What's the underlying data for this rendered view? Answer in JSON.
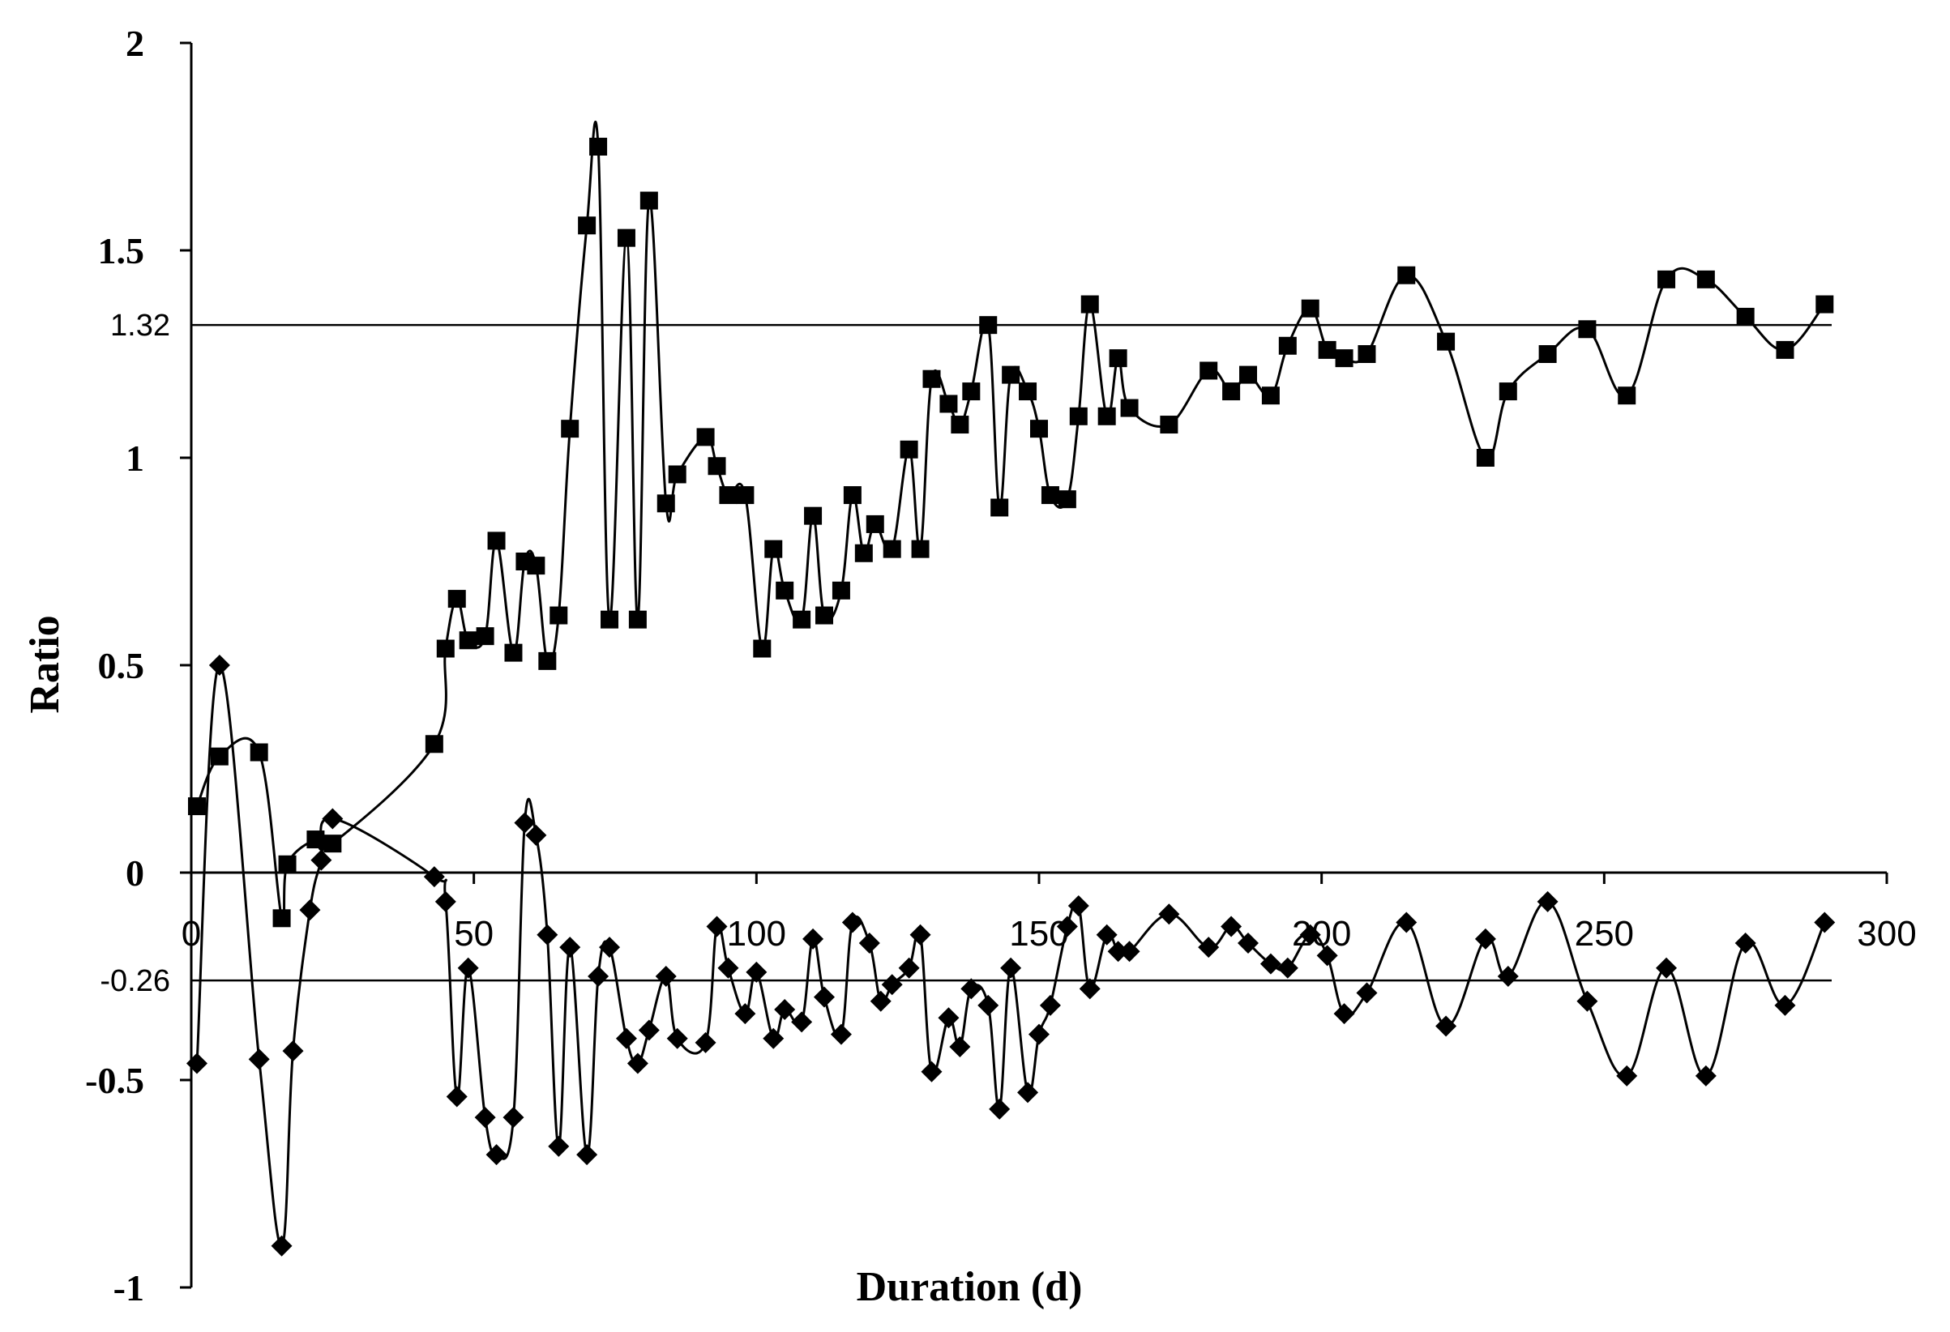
{
  "chart_data": {
    "type": "line",
    "xlabel": "Duration (d)",
    "ylabel": "Ratio",
    "xlim": [
      0,
      300
    ],
    "ylim": [
      -1,
      2
    ],
    "xticks": [
      0,
      50,
      100,
      150,
      200,
      250,
      300
    ],
    "yticks": [
      -1,
      -0.5,
      0,
      0.5,
      1,
      1.5,
      2
    ],
    "ytick_labels": [
      "-1",
      "-0.5",
      "0",
      "0.5",
      "1",
      "1.5",
      "2"
    ],
    "reference_lines": [
      {
        "value": 1.32,
        "label": "1.32"
      },
      {
        "value": -0.26,
        "label": "-0.26"
      }
    ],
    "series": [
      {
        "marker": "square",
        "color": "#000000",
        "points": [
          [
            1,
            0.16
          ],
          [
            5,
            0.28
          ],
          [
            12,
            0.29
          ],
          [
            16,
            -0.11
          ],
          [
            17,
            0.02
          ],
          [
            22,
            0.08
          ],
          [
            25,
            0.07
          ],
          [
            43,
            0.31
          ],
          [
            45,
            0.54
          ],
          [
            47,
            0.66
          ],
          [
            49,
            0.56
          ],
          [
            52,
            0.57
          ],
          [
            54,
            0.8
          ],
          [
            57,
            0.53
          ],
          [
            59,
            0.75
          ],
          [
            61,
            0.74
          ],
          [
            63,
            0.51
          ],
          [
            65,
            0.62
          ],
          [
            67,
            1.07
          ],
          [
            70,
            1.56
          ],
          [
            72,
            1.75
          ],
          [
            74,
            0.61
          ],
          [
            77,
            1.53
          ],
          [
            79,
            0.61
          ],
          [
            81,
            1.62
          ],
          [
            84,
            0.89
          ],
          [
            86,
            0.96
          ],
          [
            91,
            1.05
          ],
          [
            93,
            0.98
          ],
          [
            95,
            0.91
          ],
          [
            98,
            0.91
          ],
          [
            101,
            0.54
          ],
          [
            103,
            0.78
          ],
          [
            105,
            0.68
          ],
          [
            108,
            0.61
          ],
          [
            110,
            0.86
          ],
          [
            112,
            0.62
          ],
          [
            115,
            0.68
          ],
          [
            117,
            0.91
          ],
          [
            119,
            0.77
          ],
          [
            121,
            0.84
          ],
          [
            124,
            0.78
          ],
          [
            127,
            1.02
          ],
          [
            129,
            0.78
          ],
          [
            131,
            1.19
          ],
          [
            134,
            1.13
          ],
          [
            136,
            1.08
          ],
          [
            138,
            1.16
          ],
          [
            141,
            1.32
          ],
          [
            143,
            0.88
          ],
          [
            145,
            1.2
          ],
          [
            148,
            1.16
          ],
          [
            150,
            1.07
          ],
          [
            152,
            0.91
          ],
          [
            155,
            0.9
          ],
          [
            157,
            1.1
          ],
          [
            159,
            1.37
          ],
          [
            162,
            1.1
          ],
          [
            164,
            1.24
          ],
          [
            166,
            1.12
          ],
          [
            173,
            1.08
          ],
          [
            180,
            1.21
          ],
          [
            184,
            1.16
          ],
          [
            187,
            1.2
          ],
          [
            191,
            1.15
          ],
          [
            194,
            1.27
          ],
          [
            198,
            1.36
          ],
          [
            201,
            1.26
          ],
          [
            204,
            1.24
          ],
          [
            208,
            1.25
          ],
          [
            215,
            1.44
          ],
          [
            222,
            1.28
          ],
          [
            229,
            1.0
          ],
          [
            233,
            1.16
          ],
          [
            240,
            1.25
          ],
          [
            247,
            1.31
          ],
          [
            254,
            1.15
          ],
          [
            261,
            1.43
          ],
          [
            268,
            1.43
          ],
          [
            275,
            1.34
          ],
          [
            282,
            1.26
          ],
          [
            289,
            1.37
          ]
        ]
      },
      {
        "marker": "diamond",
        "color": "#000000",
        "points": [
          [
            1,
            -0.46
          ],
          [
            5,
            0.5
          ],
          [
            12,
            -0.45
          ],
          [
            16,
            -0.9
          ],
          [
            18,
            -0.43
          ],
          [
            21,
            -0.09
          ],
          [
            23,
            0.03
          ],
          [
            25,
            0.13
          ],
          [
            43,
            -0.01
          ],
          [
            45,
            -0.07
          ],
          [
            47,
            -0.54
          ],
          [
            49,
            -0.23
          ],
          [
            52,
            -0.59
          ],
          [
            54,
            -0.68
          ],
          [
            57,
            -0.59
          ],
          [
            59,
            0.12
          ],
          [
            61,
            0.09
          ],
          [
            63,
            -0.15
          ],
          [
            65,
            -0.66
          ],
          [
            67,
            -0.18
          ],
          [
            70,
            -0.68
          ],
          [
            72,
            -0.25
          ],
          [
            74,
            -0.18
          ],
          [
            77,
            -0.4
          ],
          [
            79,
            -0.46
          ],
          [
            81,
            -0.38
          ],
          [
            84,
            -0.25
          ],
          [
            86,
            -0.4
          ],
          [
            91,
            -0.41
          ],
          [
            93,
            -0.13
          ],
          [
            95,
            -0.23
          ],
          [
            98,
            -0.34
          ],
          [
            100,
            -0.24
          ],
          [
            103,
            -0.4
          ],
          [
            105,
            -0.33
          ],
          [
            108,
            -0.36
          ],
          [
            110,
            -0.16
          ],
          [
            112,
            -0.3
          ],
          [
            115,
            -0.39
          ],
          [
            117,
            -0.12
          ],
          [
            120,
            -0.17
          ],
          [
            122,
            -0.31
          ],
          [
            124,
            -0.27
          ],
          [
            127,
            -0.23
          ],
          [
            129,
            -0.15
          ],
          [
            131,
            -0.48
          ],
          [
            134,
            -0.35
          ],
          [
            136,
            -0.42
          ],
          [
            138,
            -0.28
          ],
          [
            141,
            -0.32
          ],
          [
            143,
            -0.57
          ],
          [
            145,
            -0.23
          ],
          [
            148,
            -0.53
          ],
          [
            150,
            -0.39
          ],
          [
            152,
            -0.32
          ],
          [
            155,
            -0.13
          ],
          [
            157,
            -0.08
          ],
          [
            159,
            -0.28
          ],
          [
            162,
            -0.15
          ],
          [
            164,
            -0.19
          ],
          [
            166,
            -0.19
          ],
          [
            173,
            -0.1
          ],
          [
            180,
            -0.18
          ],
          [
            184,
            -0.13
          ],
          [
            187,
            -0.17
          ],
          [
            191,
            -0.22
          ],
          [
            194,
            -0.23
          ],
          [
            198,
            -0.15
          ],
          [
            201,
            -0.2
          ],
          [
            204,
            -0.34
          ],
          [
            208,
            -0.29
          ],
          [
            215,
            -0.12
          ],
          [
            222,
            -0.37
          ],
          [
            229,
            -0.16
          ],
          [
            233,
            -0.25
          ],
          [
            240,
            -0.07
          ],
          [
            247,
            -0.31
          ],
          [
            254,
            -0.49
          ],
          [
            261,
            -0.23
          ],
          [
            268,
            -0.49
          ],
          [
            275,
            -0.17
          ],
          [
            282,
            -0.32
          ],
          [
            289,
            -0.12
          ]
        ]
      }
    ]
  }
}
